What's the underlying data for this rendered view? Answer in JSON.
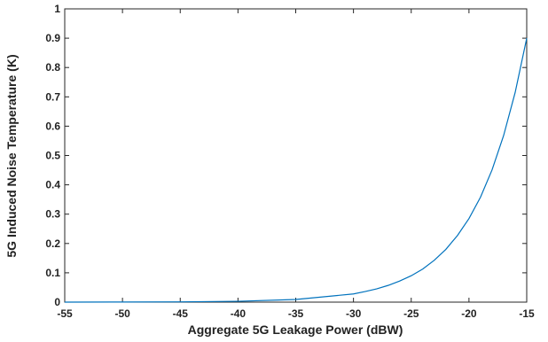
{
  "chart_data": {
    "type": "line",
    "xlabel": "Aggregate 5G Leakage Power (dBW)",
    "ylabel": "5G Induced Noise Temperature (K)",
    "x": [
      -55,
      -50,
      -45,
      -40,
      -35,
      -30,
      -29,
      -28,
      -27,
      -26,
      -25,
      -24,
      -23,
      -22,
      -21,
      -20,
      -19,
      -18,
      -17,
      -16,
      -15
    ],
    "series": [
      {
        "name": "5G Induced Noise Temperature",
        "color": "#0072bd",
        "values": [
          0.0001,
          0.0003,
          0.0009,
          0.0028,
          0.009,
          0.028,
          0.036,
          0.045,
          0.057,
          0.072,
          0.09,
          0.113,
          0.143,
          0.18,
          0.227,
          0.285,
          0.358,
          0.451,
          0.568,
          0.715,
          0.9
        ]
      }
    ],
    "xlim": [
      -55,
      -15
    ],
    "xticks": [
      -55,
      -50,
      -45,
      -40,
      -35,
      -30,
      -25,
      -20,
      -15
    ],
    "ylim": [
      0,
      1
    ],
    "yticks": [
      0,
      0.1,
      0.2,
      0.3,
      0.4,
      0.5,
      0.6,
      0.7,
      0.8,
      0.9,
      1
    ],
    "grid": false
  }
}
